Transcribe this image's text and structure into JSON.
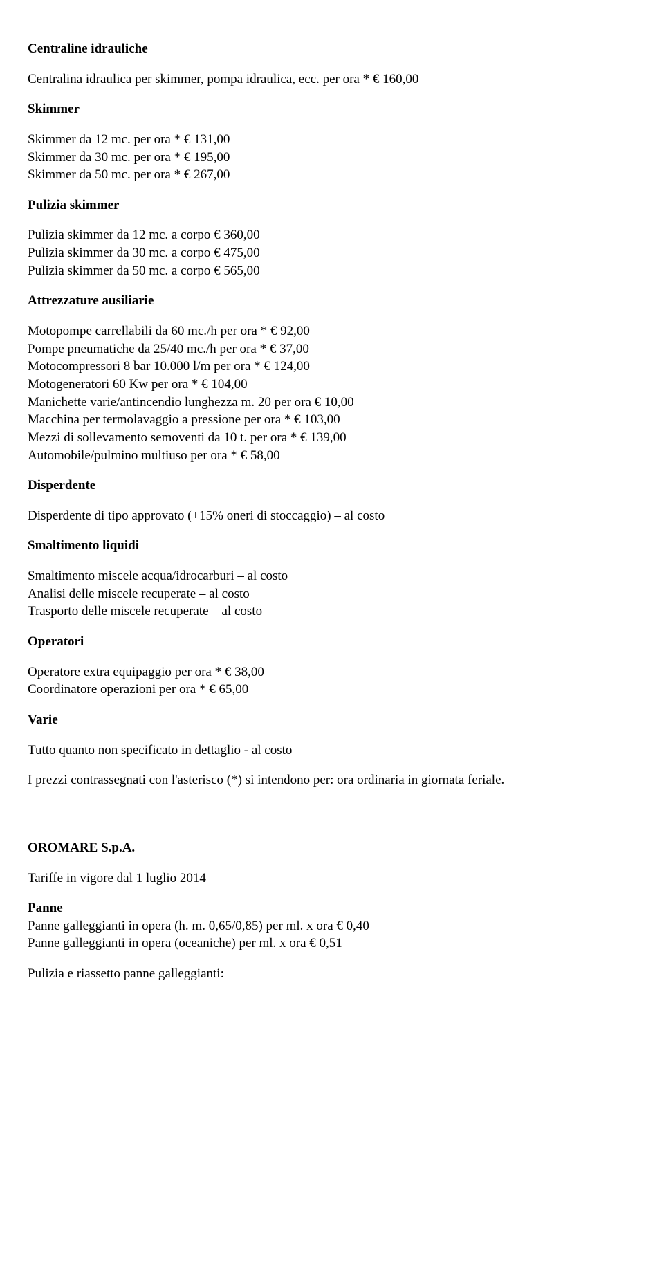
{
  "headings": {
    "centraline": "Centraline idrauliche",
    "skimmer": "Skimmer",
    "pulizia_skimmer": "Pulizia skimmer",
    "attrezzature": "Attrezzature ausiliarie",
    "disperdente": "Disperdente",
    "smaltimento": "Smaltimento liquidi",
    "operatori": "Operatori",
    "varie": "Varie",
    "oromare": "OROMARE S.p.A.",
    "panne": "Panne"
  },
  "centraline": {
    "line1": "Centralina idraulica per skimmer, pompa idraulica, ecc. per ora * € 160,00"
  },
  "skimmer": {
    "l1": "Skimmer da 12 mc. per ora * € 131,00",
    "l2": "Skimmer da 30 mc. per ora * € 195,00",
    "l3": "Skimmer da 50 mc. per ora * € 267,00"
  },
  "pulizia": {
    "l1": "Pulizia skimmer da 12 mc. a corpo € 360,00",
    "l2": "Pulizia skimmer da 30 mc. a corpo € 475,00",
    "l3": "Pulizia skimmer da 50 mc. a corpo € 565,00"
  },
  "attrezzature": {
    "l1": "Motopompe carrellabili da 60 mc./h per ora * € 92,00",
    "l2": "Pompe pneumatiche da 25/40 mc./h per ora * € 37,00",
    "l3": "Motocompressori 8 bar 10.000 l/m per ora * € 124,00",
    "l4": "Motogeneratori 60 Kw per ora * € 104,00",
    "l5": "Manichette varie/antincendio lunghezza m. 20 per ora € 10,00",
    "l6": "Macchina per termolavaggio a pressione per ora * € 103,00",
    "l7": "Mezzi di sollevamento semoventi da 10 t. per ora * € 139,00",
    "l8": "Automobile/pulmino multiuso per ora * € 58,00"
  },
  "disperdente": {
    "l1": "Disperdente di tipo approvato (+15% oneri di stoccaggio) – al costo"
  },
  "smaltimento": {
    "l1": "Smaltimento miscele acqua/idrocarburi – al costo",
    "l2": "Analisi delle miscele recuperate – al costo",
    "l3": "Trasporto delle miscele recuperate – al costo"
  },
  "operatori": {
    "l1": "Operatore extra equipaggio per ora * € 38,00",
    "l2": "Coordinatore operazioni per ora * € 65,00"
  },
  "varie": {
    "l1": "Tutto quanto non specificato in dettaglio  - al costo"
  },
  "footnote": {
    "l1": "I prezzi contrassegnati con l'asterisco (*) si intendono per: ora ordinaria  in giornata feriale."
  },
  "oromare": {
    "tariff": "Tariffe in vigore dal 1 luglio 2014"
  },
  "panne": {
    "l1": "Panne galleggianti in opera  (h. m. 0,65/0,85)  per ml. x ora € 0,40",
    "l2": "Panne galleggianti in opera (oceaniche) per ml. x ora € 0,51"
  },
  "pulizia_riassetto": {
    "l1": "Pulizia e riassetto panne galleggianti:"
  }
}
